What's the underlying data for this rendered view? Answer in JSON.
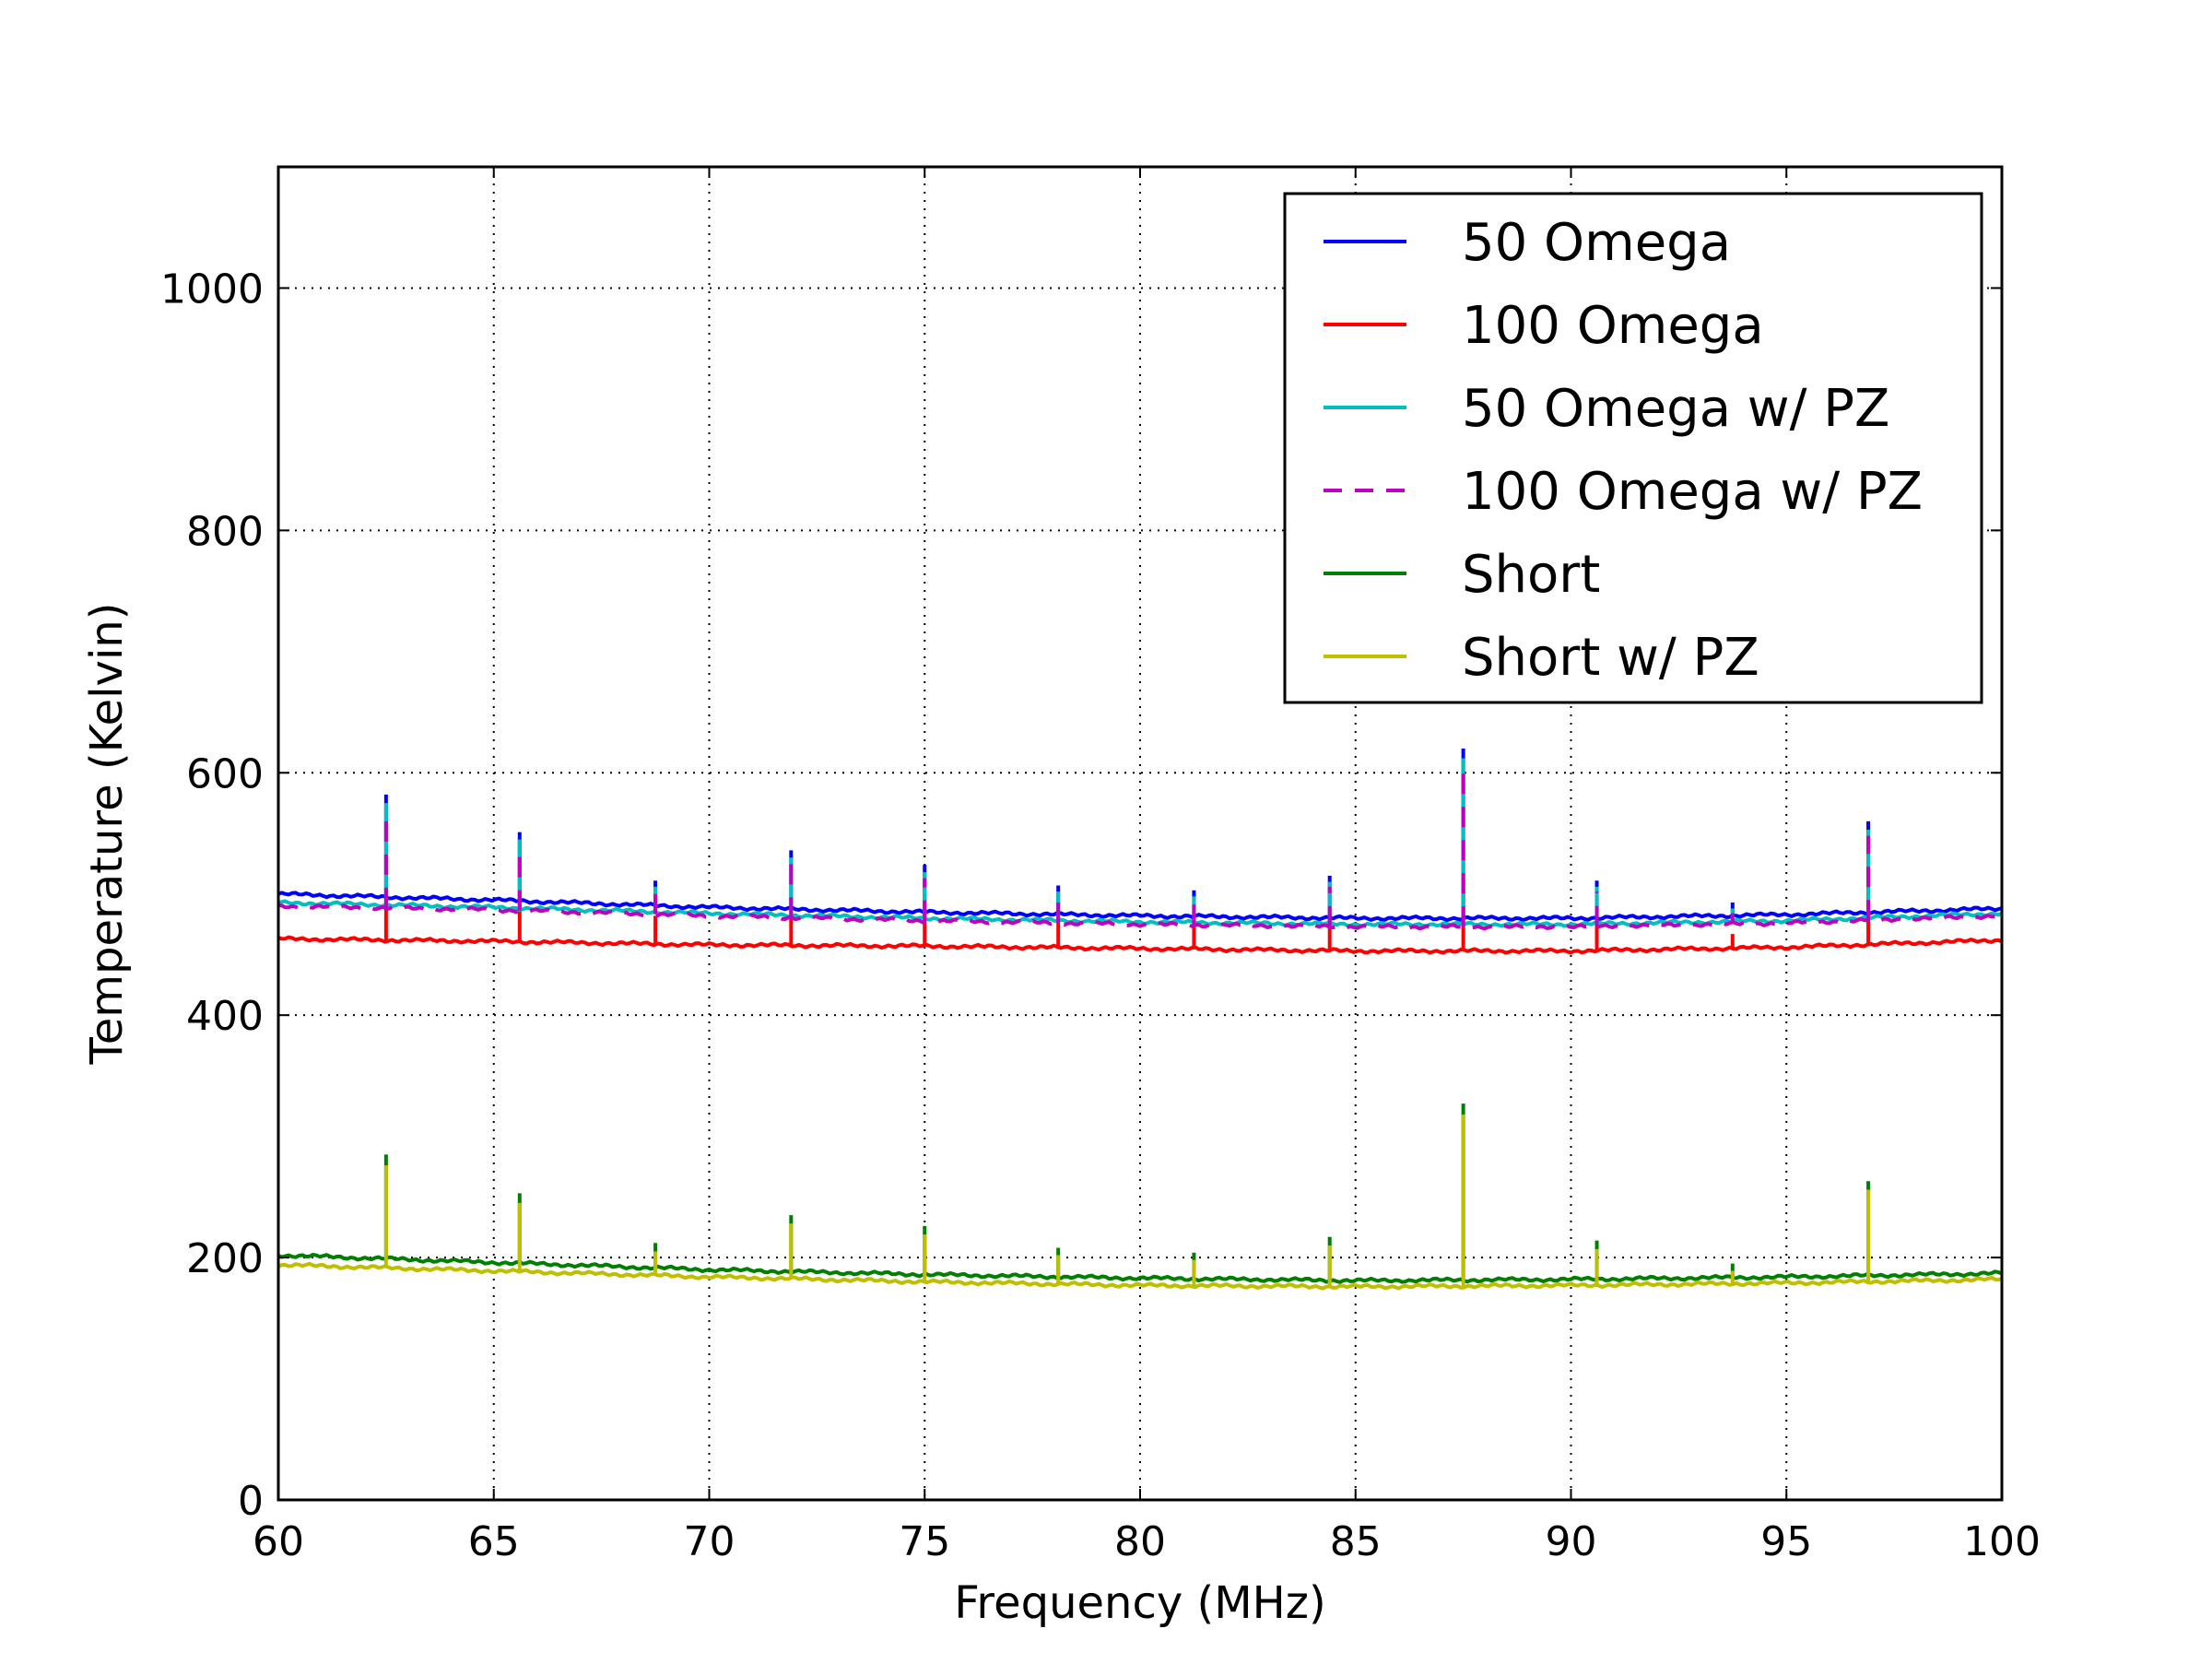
{
  "chart_data": {
    "type": "line",
    "title": "",
    "xlabel": "Frequency (MHz)",
    "ylabel": "Temperature (Kelvin)",
    "xlim": [
      60,
      100
    ],
    "ylim": [
      0,
      1100
    ],
    "x_ticks": [
      "60",
      "65",
      "70",
      "75",
      "80",
      "85",
      "90",
      "95",
      "100"
    ],
    "y_ticks": [
      "0",
      "200",
      "400",
      "600",
      "800",
      "1000"
    ],
    "x_tick_values": [
      60,
      65,
      70,
      75,
      80,
      85,
      90,
      95,
      100
    ],
    "y_tick_values": [
      0,
      200,
      400,
      600,
      800,
      1000
    ],
    "grid": true,
    "legend_position": "top-right",
    "spike_x": [
      62.5,
      65.6,
      68.75,
      71.9,
      75.0,
      78.1,
      81.25,
      84.4,
      87.5,
      90.6,
      93.75,
      96.9
    ],
    "series": [
      {
        "name": "50 Omega",
        "color": "#0000ff",
        "dash": "solid",
        "x": [
          60,
          65,
          70,
          75,
          80,
          85,
          90,
          95,
          100
        ],
        "y": [
          500,
          495,
          489,
          485,
          482,
          480,
          480,
          483,
          488
        ],
        "spike_peaks": [
          582,
          551,
          511,
          536,
          524,
          507,
          503,
          515,
          620,
          511,
          493,
          560
        ]
      },
      {
        "name": "100 Omega",
        "color": "#ff0000",
        "dash": "solid",
        "x": [
          60,
          65,
          70,
          75,
          80,
          85,
          90,
          95,
          100
        ],
        "y": [
          463,
          461,
          458,
          457,
          455,
          453,
          453,
          456,
          462
        ],
        "spike_peaks": [
          500,
          492,
          482,
          490,
          487,
          480,
          478,
          482,
          510,
          480,
          467,
          496
        ]
      },
      {
        "name": "50 Omega w/ PZ",
        "color": "#00bfbf",
        "dash": "solid",
        "x": [
          60,
          65,
          70,
          75,
          80,
          85,
          90,
          95,
          100
        ],
        "y": [
          493,
          489,
          484,
          480,
          477,
          475,
          475,
          478,
          484
        ],
        "spike_peaks": [
          575,
          545,
          506,
          530,
          518,
          502,
          498,
          510,
          612,
          506,
          488,
          553
        ]
      },
      {
        "name": "100 Omega w/ PZ",
        "color": "#bf00bf",
        "dash": "dashed",
        "x": [
          60,
          65,
          70,
          75,
          80,
          85,
          90,
          95,
          100
        ],
        "y": [
          490,
          487,
          482,
          478,
          475,
          473,
          473,
          476,
          482
        ],
        "spike_peaks": [
          570,
          540,
          502,
          525,
          513,
          498,
          494,
          506,
          606,
          502,
          484,
          548
        ]
      },
      {
        "name": "Short",
        "color": "#007f00",
        "dash": "solid",
        "x": [
          60,
          65,
          70,
          75,
          80,
          85,
          90,
          95,
          100
        ],
        "y": [
          202,
          196,
          190,
          186,
          183,
          181,
          182,
          184,
          187
        ],
        "spike_peaks": [
          285,
          253,
          212,
          235,
          226,
          208,
          204,
          217,
          327,
          214,
          195,
          263
        ]
      },
      {
        "name": "Short w/ PZ",
        "color": "#bfbf00",
        "dash": "solid",
        "x": [
          60,
          65,
          70,
          75,
          80,
          85,
          90,
          95,
          100
        ],
        "y": [
          194,
          189,
          184,
          180,
          177,
          176,
          177,
          179,
          182
        ],
        "spike_peaks": [
          276,
          245,
          205,
          228,
          219,
          202,
          198,
          210,
          318,
          207,
          189,
          256
        ]
      }
    ]
  }
}
